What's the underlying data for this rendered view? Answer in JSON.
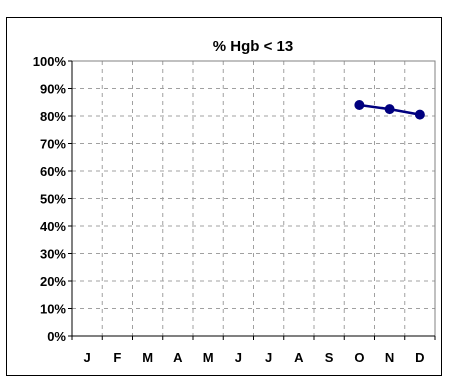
{
  "chart_data": {
    "type": "line",
    "title": "% Hgb < 13",
    "xlabel": "",
    "ylabel": "",
    "categories": [
      "J",
      "F",
      "M",
      "A",
      "M",
      "J",
      "J",
      "A",
      "S",
      "O",
      "N",
      "D"
    ],
    "series": [
      {
        "values": [
          null,
          null,
          null,
          null,
          null,
          null,
          null,
          null,
          null,
          84,
          82.5,
          80.5
        ],
        "color": "#00007f"
      }
    ],
    "ylim": [
      0,
      100
    ],
    "yticks": [
      "0%",
      "10%",
      "20%",
      "30%",
      "40%",
      "50%",
      "60%",
      "70%",
      "80%",
      "90%",
      "100%"
    ],
    "grid": true,
    "legend": "none"
  }
}
